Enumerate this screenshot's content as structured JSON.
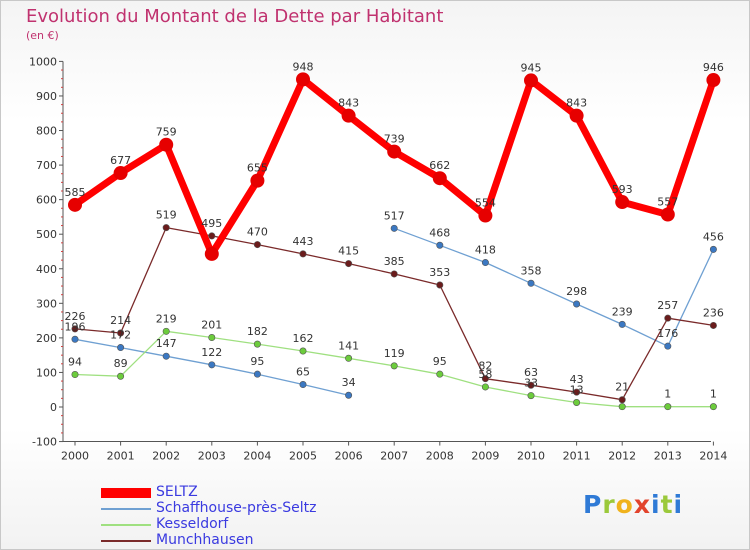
{
  "title": "Evolution du Montant de la Dette par Habitant",
  "subtitle": "(en €)",
  "logo": {
    "text": "Proxiti"
  },
  "chart_data": {
    "type": "line",
    "categories": [
      "2000",
      "2001",
      "2002",
      "2003",
      "2004",
      "2005",
      "2006",
      "2007",
      "2008",
      "2009",
      "2010",
      "2011",
      "2012",
      "2013",
      "2014"
    ],
    "ylim": [
      -100,
      1000
    ],
    "yticks": [
      -100,
      0,
      100,
      200,
      300,
      400,
      500,
      600,
      700,
      800,
      900,
      1000
    ],
    "grid": false,
    "legend_position": "bottom-left",
    "series": [
      {
        "name": "SELTZ",
        "color": "#ff0000",
        "marker": "#e60000",
        "width": 7,
        "radius": 7,
        "values": [
          585,
          677,
          759,
          443,
          655,
          948,
          843,
          739,
          662,
          554,
          945,
          843,
          593,
          557,
          946
        ],
        "labels": [
          "585",
          "677",
          "759",
          "",
          "655",
          "948",
          "843",
          "739",
          "662",
          "554",
          "945",
          "843",
          "593",
          "557",
          "946"
        ]
      },
      {
        "name": "Schaffhouse-près-Seltz",
        "color": "#6fa0d2",
        "marker": "#3b78c2",
        "width": 1.3,
        "radius": 3.2,
        "values": [
          196,
          172,
          147,
          122,
          95,
          65,
          34,
          null,
          null,
          null,
          null,
          null,
          null,
          null,
          null
        ],
        "labels": [
          "196",
          "172",
          "147",
          "122",
          "95",
          "65",
          "34",
          "",
          "",
          "",
          "",
          "",
          "",
          "",
          ""
        ]
      },
      {
        "name": "Schaffhouse-près-Seltz",
        "color": "#6fa0d2",
        "marker": "#3b78c2",
        "width": 1.3,
        "radius": 3.2,
        "hidden_legend": true,
        "values": [
          null,
          null,
          null,
          null,
          null,
          null,
          null,
          517,
          468,
          418,
          358,
          298,
          239,
          176,
          456
        ],
        "labels": [
          "",
          "",
          "",
          "",
          "",
          "",
          "",
          "517",
          "468",
          "418",
          "358",
          "298",
          "239",
          "176",
          "456"
        ]
      },
      {
        "name": "Kesseldorf",
        "color": "#9fe080",
        "marker": "#6ccc3c",
        "width": 1.3,
        "radius": 3.2,
        "values": [
          94,
          89,
          219,
          201,
          182,
          162,
          141,
          119,
          95,
          58,
          33,
          13,
          1,
          1,
          1
        ],
        "labels": [
          "94",
          "89",
          "219",
          "201",
          "182",
          "162",
          "141",
          "119",
          "95",
          "58",
          "33",
          "13",
          "",
          "1",
          "1"
        ]
      },
      {
        "name": "Munchhausen",
        "color": "#7a2a2a",
        "marker": "#6b1c1c",
        "width": 1.3,
        "radius": 3.2,
        "values": [
          226,
          214,
          519,
          495,
          470,
          443,
          415,
          385,
          353,
          82,
          63,
          43,
          21,
          257,
          236
        ],
        "labels": [
          "226",
          "214",
          "519",
          "495",
          "470",
          "443",
          "415",
          "385",
          "353",
          "82",
          "63",
          "43",
          "21",
          "257",
          "236"
        ]
      }
    ]
  },
  "legend": [
    {
      "name": "SELTZ",
      "color": "#ff0000",
      "thickness": 10
    },
    {
      "name": "Schaffhouse-près-Seltz",
      "color": "#6fa0d2",
      "thickness": 2
    },
    {
      "name": "Kesseldorf",
      "color": "#9fe080",
      "thickness": 2
    },
    {
      "name": "Munchhausen",
      "color": "#7a2a2a",
      "thickness": 2
    }
  ]
}
